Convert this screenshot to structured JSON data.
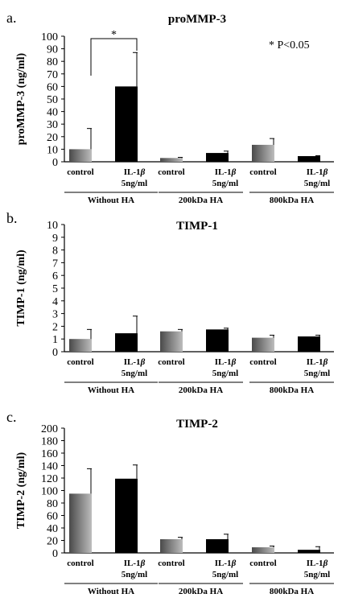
{
  "chart_data": [
    {
      "type": "bar",
      "panel": "a.",
      "title": "proMMP-3",
      "ylabel": "proMMP-3 (ng/ml)",
      "ylim": [
        0,
        100
      ],
      "yticks": [
        0,
        10,
        20,
        30,
        40,
        50,
        60,
        70,
        80,
        90,
        100
      ],
      "categories": [
        "control",
        "IL-1β 5ng/ml",
        "control",
        "IL-1β 5ng/ml",
        "control",
        "IL-1β 5ng/ml"
      ],
      "category_lines": [
        [
          "control"
        ],
        [
          "IL-1β",
          "5ng/ml"
        ],
        [
          "control"
        ],
        [
          "IL-1β",
          "5ng/ml"
        ],
        [
          "control"
        ],
        [
          "IL-1β",
          "5ng/ml"
        ]
      ],
      "groups": [
        "Without HA",
        "200kDa HA",
        "800kDa HA"
      ],
      "values": [
        10,
        60,
        3,
        7,
        13.5,
        4.5
      ],
      "errors": [
        16.5,
        27,
        0.5,
        1.5,
        5,
        0.3
      ],
      "bar_styles": [
        "control",
        "il1",
        "control",
        "il1",
        "control",
        "il1"
      ],
      "significance": {
        "symbol": "*",
        "between": [
          0,
          1
        ]
      },
      "note": "* P<0.05"
    },
    {
      "type": "bar",
      "panel": "b.",
      "title": "TIMP-1",
      "ylabel": "TIMP-1 (ng/ml)",
      "ylim": [
        0,
        10
      ],
      "yticks": [
        0,
        1,
        2,
        3,
        4,
        5,
        6,
        7,
        8,
        9,
        10
      ],
      "categories": [
        "control",
        "IL-1β 5ng/ml",
        "control",
        "IL-1β 5ng/ml",
        "control",
        "IL-1β 5ng/ml"
      ],
      "category_lines": [
        [
          "control"
        ],
        [
          "IL-1β",
          "5ng/ml"
        ],
        [
          "control"
        ],
        [
          "IL-1β",
          "5ng/ml"
        ],
        [
          "control"
        ],
        [
          "IL-1β",
          "5ng/ml"
        ]
      ],
      "groups": [
        "Without HA",
        "200kDa HA",
        "800kDa HA"
      ],
      "values": [
        1.0,
        1.45,
        1.6,
        1.75,
        1.1,
        1.2
      ],
      "errors": [
        0.75,
        1.35,
        0.15,
        0.1,
        0.2,
        0.1
      ],
      "bar_styles": [
        "control",
        "il1",
        "control",
        "il1",
        "control",
        "il1"
      ]
    },
    {
      "type": "bar",
      "panel": "c.",
      "title": "TIMP-2",
      "ylabel": "TIMP-2 (ng/ml)",
      "ylim": [
        0,
        200
      ],
      "yticks": [
        0,
        20,
        40,
        60,
        80,
        100,
        120,
        140,
        160,
        180,
        200
      ],
      "categories": [
        "control",
        "IL-1β 5ng/ml",
        "control",
        "IL-1β 5ng/ml",
        "control",
        "IL-1β 5ng/ml"
      ],
      "category_lines": [
        [
          "control"
        ],
        [
          "IL-1β",
          "5ng/ml"
        ],
        [
          "control"
        ],
        [
          "IL-1β",
          "5ng/ml"
        ],
        [
          "control"
        ],
        [
          "IL-1β",
          "5ng/ml"
        ]
      ],
      "groups": [
        "Without HA",
        "200kDa HA",
        "800kDa HA"
      ],
      "values": [
        95,
        119,
        22,
        22,
        9,
        5
      ],
      "errors": [
        40,
        22,
        3,
        8,
        2,
        5
      ],
      "bar_styles": [
        "control",
        "il1",
        "control",
        "il1",
        "control",
        "il1"
      ]
    }
  ],
  "colors": {
    "control_dark": "#4a4a4a",
    "control_light": "#bdbdbd",
    "il1": "#000000",
    "axis": "#000000"
  }
}
